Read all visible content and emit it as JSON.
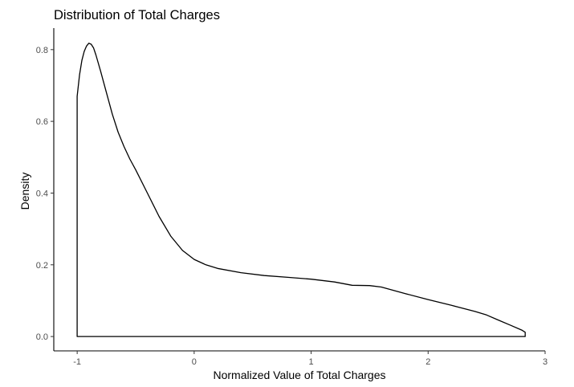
{
  "chart_data": {
    "type": "area",
    "title": "Distribution of Total Charges",
    "xlabel": "Normalized Value of Total Charges",
    "ylabel": "Density",
    "xlim": [
      -1.2,
      3.0
    ],
    "ylim": [
      -0.04,
      0.86
    ],
    "x_ticks": [
      -1,
      0,
      1,
      2,
      3
    ],
    "x_tick_labels": [
      "-1",
      "0",
      "1",
      "2",
      "3"
    ],
    "y_ticks": [
      0.0,
      0.2,
      0.4,
      0.6,
      0.8
    ],
    "y_tick_labels": [
      "0.0",
      "0.2",
      "0.4",
      "0.6",
      "0.8"
    ],
    "grid": false,
    "legend": "none",
    "fill": "none",
    "line_color": "#000000",
    "series": [
      {
        "x": [
          -1.0,
          -0.98,
          -0.96,
          -0.94,
          -0.92,
          -0.9,
          -0.88,
          -0.86,
          -0.84,
          -0.8,
          -0.75,
          -0.7,
          -0.65,
          -0.6,
          -0.55,
          -0.5,
          -0.4,
          -0.3,
          -0.2,
          -0.1,
          0.0,
          0.1,
          0.2,
          0.4,
          0.6,
          0.8,
          1.0,
          1.2,
          1.35,
          1.5,
          1.6,
          1.8,
          2.0,
          2.2,
          2.4,
          2.5,
          2.6,
          2.7,
          2.8,
          2.83
        ],
        "y": [
          0.67,
          0.73,
          0.77,
          0.795,
          0.81,
          0.818,
          0.815,
          0.805,
          0.785,
          0.74,
          0.68,
          0.62,
          0.57,
          0.53,
          0.495,
          0.465,
          0.4,
          0.335,
          0.28,
          0.24,
          0.215,
          0.2,
          0.19,
          0.178,
          0.17,
          0.165,
          0.16,
          0.152,
          0.143,
          0.142,
          0.138,
          0.12,
          0.103,
          0.087,
          0.07,
          0.06,
          0.046,
          0.032,
          0.018,
          0.012
        ]
      }
    ]
  }
}
